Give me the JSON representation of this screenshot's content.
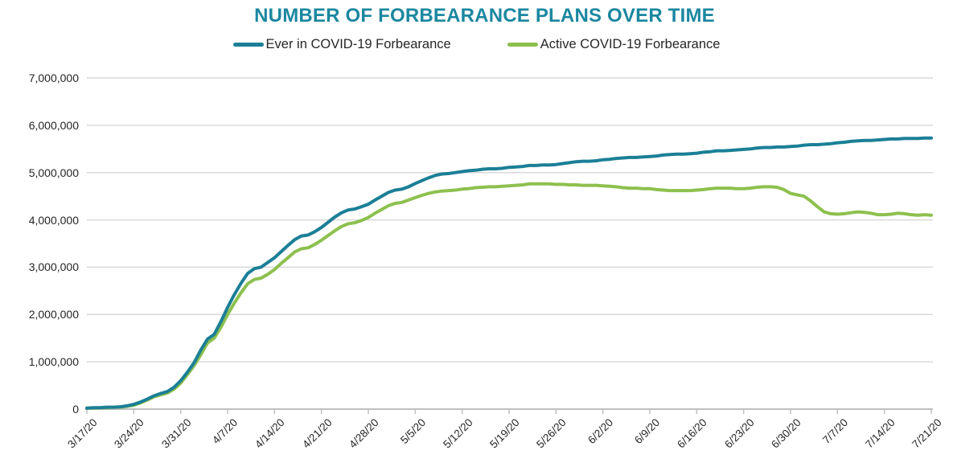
{
  "chart_data": {
    "type": "line",
    "title": "NUMBER OF FORBEARANCE PLANS OVER TIME",
    "title_color": "#1b87a0",
    "background": "#ffffff",
    "gridline_color": "#d9d9d9",
    "axis_color": "#bfbfbf",
    "legend_position": "top-center",
    "grid": "horizontal-on",
    "x_frequency": "daily",
    "x_range": [
      "3/17/20",
      "7/21/20"
    ],
    "x_tick_labels": [
      "3/17/20",
      "3/24/20",
      "3/31/20",
      "4/7/20",
      "4/14/20",
      "4/21/20",
      "4/28/20",
      "5/5/20",
      "5/12/20",
      "5/19/20",
      "5/26/20",
      "6/2/20",
      "6/9/20",
      "6/16/20",
      "6/23/20",
      "6/30/20",
      "7/7/20",
      "7/14/20",
      "7/21/20"
    ],
    "y_tick_labels": [
      "0",
      "1,000,000",
      "2,000,000",
      "3,000,000",
      "4,000,000",
      "5,000,000",
      "6,000,000",
      "7,000,000"
    ],
    "ylim": [
      0,
      7000000
    ],
    "y_units": "number of forbearance plans (values stored in millions)",
    "series": [
      {
        "name": "Ever in COVID-19 Forbearance",
        "color": "#1b7f96",
        "values_millions": [
          0.02,
          0.03,
          0.03,
          0.04,
          0.04,
          0.05,
          0.07,
          0.1,
          0.15,
          0.21,
          0.28,
          0.33,
          0.37,
          0.46,
          0.6,
          0.78,
          0.98,
          1.25,
          1.48,
          1.58,
          1.85,
          2.15,
          2.42,
          2.66,
          2.87,
          2.97,
          3.0,
          3.1,
          3.2,
          3.33,
          3.46,
          3.58,
          3.66,
          3.68,
          3.75,
          3.84,
          3.95,
          4.06,
          4.15,
          4.21,
          4.23,
          4.28,
          4.33,
          4.42,
          4.5,
          4.58,
          4.63,
          4.65,
          4.7,
          4.77,
          4.83,
          4.89,
          4.94,
          4.97,
          4.98,
          5.0,
          5.02,
          5.04,
          5.05,
          5.07,
          5.08,
          5.08,
          5.09,
          5.11,
          5.12,
          5.13,
          5.15,
          5.15,
          5.16,
          5.16,
          5.17,
          5.19,
          5.21,
          5.23,
          5.24,
          5.24,
          5.25,
          5.27,
          5.28,
          5.3,
          5.31,
          5.32,
          5.32,
          5.33,
          5.34,
          5.35,
          5.37,
          5.38,
          5.39,
          5.39,
          5.4,
          5.41,
          5.43,
          5.44,
          5.46,
          5.46,
          5.47,
          5.48,
          5.49,
          5.5,
          5.52,
          5.53,
          5.53,
          5.54,
          5.54,
          5.55,
          5.56,
          5.58,
          5.59,
          5.59,
          5.6,
          5.61,
          5.63,
          5.64,
          5.66,
          5.67,
          5.68,
          5.68,
          5.69,
          5.7,
          5.71,
          5.71,
          5.72,
          5.72,
          5.72,
          5.73,
          5.73
        ]
      },
      {
        "name": "Active COVID-19 Forbearance",
        "color": "#8dc04e",
        "values_millions": [
          0.02,
          0.02,
          0.03,
          0.03,
          0.04,
          0.04,
          0.06,
          0.08,
          0.13,
          0.19,
          0.26,
          0.3,
          0.34,
          0.42,
          0.55,
          0.73,
          0.92,
          1.15,
          1.4,
          1.5,
          1.73,
          2.0,
          2.24,
          2.46,
          2.65,
          2.74,
          2.77,
          2.85,
          2.95,
          3.08,
          3.2,
          3.32,
          3.39,
          3.41,
          3.48,
          3.57,
          3.67,
          3.77,
          3.86,
          3.92,
          3.94,
          3.99,
          4.05,
          4.14,
          4.22,
          4.3,
          4.35,
          4.37,
          4.42,
          4.47,
          4.52,
          4.56,
          4.59,
          4.61,
          4.62,
          4.63,
          4.65,
          4.66,
          4.68,
          4.69,
          4.7,
          4.7,
          4.71,
          4.72,
          4.73,
          4.74,
          4.76,
          4.76,
          4.76,
          4.76,
          4.75,
          4.75,
          4.74,
          4.74,
          4.73,
          4.73,
          4.73,
          4.72,
          4.71,
          4.7,
          4.68,
          4.67,
          4.67,
          4.66,
          4.66,
          4.64,
          4.63,
          4.62,
          4.62,
          4.62,
          4.62,
          4.63,
          4.64,
          4.66,
          4.67,
          4.67,
          4.67,
          4.66,
          4.66,
          4.67,
          4.69,
          4.7,
          4.7,
          4.69,
          4.64,
          4.56,
          4.53,
          4.5,
          4.4,
          4.28,
          4.17,
          4.13,
          4.12,
          4.13,
          4.15,
          4.17,
          4.16,
          4.14,
          4.11,
          4.11,
          4.12,
          4.14,
          4.13,
          4.11,
          4.1,
          4.11,
          4.1
        ]
      }
    ]
  }
}
